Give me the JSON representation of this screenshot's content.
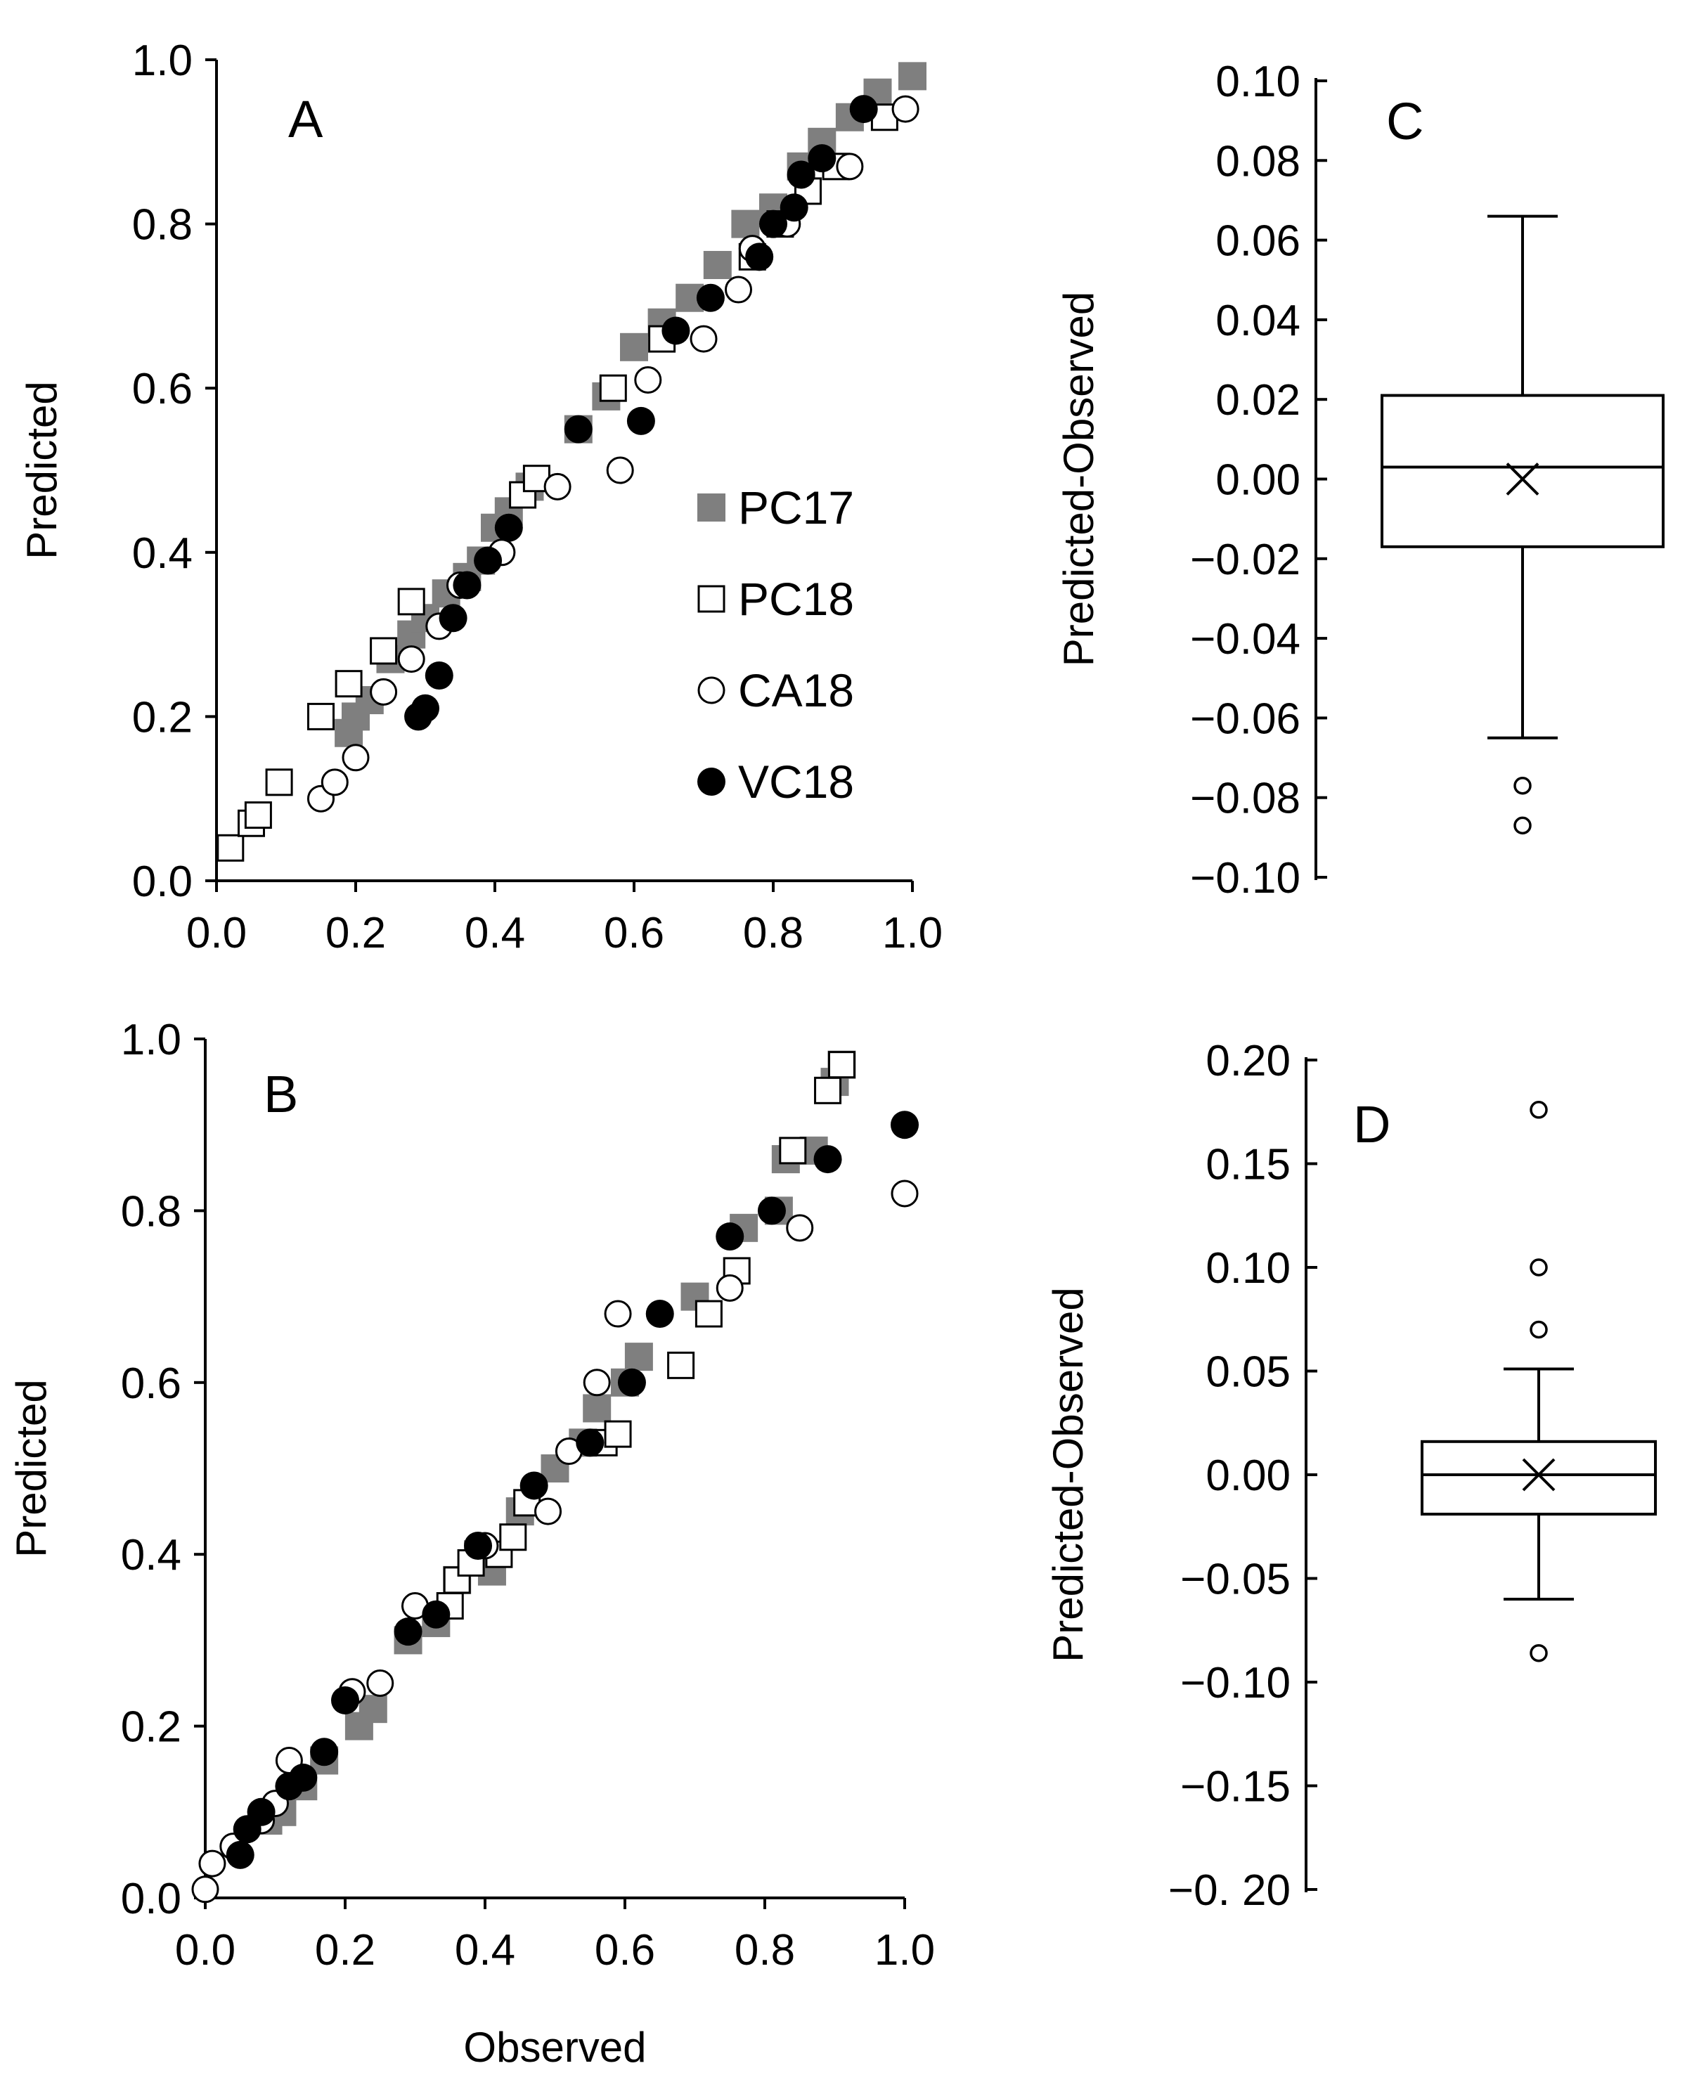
{
  "chart_data": [
    {
      "id": "A",
      "type": "scatter",
      "panel_label": "A",
      "xlabel": "",
      "ylabel": "Predicted",
      "xlim": [
        0,
        1
      ],
      "ylim": [
        0,
        1
      ],
      "x_ticks": [
        "0.0",
        "0.2",
        "0.4",
        "0.6",
        "0.8",
        "1.0"
      ],
      "y_ticks": [
        "0.0",
        "0.2",
        "0.4",
        "0.6",
        "0.8",
        "1.0"
      ],
      "legend": {
        "position": "center-right",
        "entries": [
          "PC17",
          "PC18",
          "CA18",
          "VC18"
        ]
      },
      "series": [
        {
          "name": "PC17",
          "marker": "gray-square",
          "points": [
            [
              0.19,
              0.18
            ],
            [
              0.2,
              0.2
            ],
            [
              0.22,
              0.22
            ],
            [
              0.25,
              0.27
            ],
            [
              0.28,
              0.3
            ],
            [
              0.3,
              0.32
            ],
            [
              0.33,
              0.35
            ],
            [
              0.36,
              0.37
            ],
            [
              0.38,
              0.39
            ],
            [
              0.4,
              0.43
            ],
            [
              0.42,
              0.45
            ],
            [
              0.45,
              0.48
            ],
            [
              0.52,
              0.55
            ],
            [
              0.56,
              0.59
            ],
            [
              0.6,
              0.65
            ],
            [
              0.64,
              0.68
            ],
            [
              0.68,
              0.71
            ],
            [
              0.72,
              0.75
            ],
            [
              0.76,
              0.8
            ],
            [
              0.8,
              0.82
            ],
            [
              0.84,
              0.87
            ],
            [
              0.87,
              0.9
            ],
            [
              0.91,
              0.93
            ],
            [
              0.95,
              0.96
            ],
            [
              1.0,
              0.98
            ]
          ]
        },
        {
          "name": "PC18",
          "marker": "open-square",
          "points": [
            [
              0.02,
              0.04
            ],
            [
              0.05,
              0.07
            ],
            [
              0.06,
              0.08
            ],
            [
              0.09,
              0.12
            ],
            [
              0.15,
              0.2
            ],
            [
              0.19,
              0.24
            ],
            [
              0.24,
              0.28
            ],
            [
              0.28,
              0.34
            ],
            [
              0.44,
              0.47
            ],
            [
              0.46,
              0.49
            ],
            [
              0.57,
              0.6
            ],
            [
              0.64,
              0.66
            ],
            [
              0.77,
              0.76
            ],
            [
              0.81,
              0.8
            ],
            [
              0.85,
              0.84
            ],
            [
              0.89,
              0.87
            ],
            [
              0.96,
              0.93
            ]
          ]
        },
        {
          "name": "CA18",
          "marker": "open-circle",
          "points": [
            [
              0.15,
              0.1
            ],
            [
              0.17,
              0.12
            ],
            [
              0.2,
              0.15
            ],
            [
              0.24,
              0.23
            ],
            [
              0.28,
              0.27
            ],
            [
              0.32,
              0.31
            ],
            [
              0.35,
              0.36
            ],
            [
              0.41,
              0.4
            ],
            [
              0.49,
              0.48
            ],
            [
              0.58,
              0.5
            ],
            [
              0.62,
              0.61
            ],
            [
              0.7,
              0.66
            ],
            [
              0.75,
              0.72
            ],
            [
              0.77,
              0.77
            ],
            [
              0.82,
              0.8
            ],
            [
              0.91,
              0.87
            ],
            [
              0.99,
              0.94
            ]
          ]
        },
        {
          "name": "VC18",
          "marker": "filled-circle",
          "points": [
            [
              0.29,
              0.2
            ],
            [
              0.3,
              0.21
            ],
            [
              0.32,
              0.25
            ],
            [
              0.34,
              0.32
            ],
            [
              0.36,
              0.36
            ],
            [
              0.39,
              0.39
            ],
            [
              0.42,
              0.43
            ],
            [
              0.52,
              0.55
            ],
            [
              0.61,
              0.56
            ],
            [
              0.66,
              0.67
            ],
            [
              0.71,
              0.71
            ],
            [
              0.78,
              0.76
            ],
            [
              0.8,
              0.8
            ],
            [
              0.83,
              0.82
            ],
            [
              0.84,
              0.86
            ],
            [
              0.87,
              0.88
            ],
            [
              0.93,
              0.94
            ]
          ]
        }
      ]
    },
    {
      "id": "B",
      "type": "scatter",
      "panel_label": "B",
      "xlabel": "Observed",
      "ylabel": "Predicted",
      "xlim": [
        0,
        1
      ],
      "ylim": [
        0,
        1
      ],
      "x_ticks": [
        "0.0",
        "0.2",
        "0.4",
        "0.6",
        "0.8",
        "1.0"
      ],
      "y_ticks": [
        "0.0",
        "0.2",
        "0.4",
        "0.6",
        "0.8",
        "1.0"
      ],
      "series": [
        {
          "name": "PC17",
          "marker": "gray-square",
          "points": [
            [
              0.09,
              0.09
            ],
            [
              0.11,
              0.1
            ],
            [
              0.14,
              0.13
            ],
            [
              0.17,
              0.16
            ],
            [
              0.22,
              0.2
            ],
            [
              0.24,
              0.22
            ],
            [
              0.29,
              0.3
            ],
            [
              0.33,
              0.32
            ],
            [
              0.36,
              0.37
            ],
            [
              0.39,
              0.4
            ],
            [
              0.41,
              0.38
            ],
            [
              0.45,
              0.45
            ],
            [
              0.5,
              0.5
            ],
            [
              0.54,
              0.53
            ],
            [
              0.56,
              0.57
            ],
            [
              0.6,
              0.6
            ],
            [
              0.62,
              0.63
            ],
            [
              0.7,
              0.7
            ],
            [
              0.77,
              0.78
            ],
            [
              0.82,
              0.8
            ],
            [
              0.83,
              0.86
            ],
            [
              0.87,
              0.87
            ],
            [
              0.9,
              0.95
            ],
            [
              0.91,
              0.97
            ]
          ]
        },
        {
          "name": "PC18",
          "marker": "open-square",
          "points": [
            [
              0.35,
              0.34
            ],
            [
              0.36,
              0.37
            ],
            [
              0.38,
              0.39
            ],
            [
              0.42,
              0.4
            ],
            [
              0.44,
              0.42
            ],
            [
              0.46,
              0.46
            ],
            [
              0.57,
              0.53
            ],
            [
              0.59,
              0.54
            ],
            [
              0.68,
              0.62
            ],
            [
              0.72,
              0.68
            ],
            [
              0.76,
              0.73
            ],
            [
              0.84,
              0.87
            ],
            [
              0.89,
              0.94
            ],
            [
              0.91,
              0.97
            ]
          ]
        },
        {
          "name": "CA18",
          "marker": "open-circle",
          "points": [
            [
              0.0,
              0.01
            ],
            [
              0.01,
              0.04
            ],
            [
              0.04,
              0.06
            ],
            [
              0.08,
              0.09
            ],
            [
              0.1,
              0.11
            ],
            [
              0.12,
              0.16
            ],
            [
              0.21,
              0.24
            ],
            [
              0.25,
              0.25
            ],
            [
              0.3,
              0.34
            ],
            [
              0.4,
              0.41
            ],
            [
              0.49,
              0.45
            ],
            [
              0.52,
              0.52
            ],
            [
              0.56,
              0.6
            ],
            [
              0.59,
              0.68
            ],
            [
              0.75,
              0.71
            ],
            [
              0.85,
              0.78
            ],
            [
              1.0,
              0.82
            ]
          ]
        },
        {
          "name": "VC18",
          "marker": "filled-circle",
          "points": [
            [
              0.05,
              0.05
            ],
            [
              0.06,
              0.08
            ],
            [
              0.08,
              0.1
            ],
            [
              0.12,
              0.13
            ],
            [
              0.14,
              0.14
            ],
            [
              0.17,
              0.17
            ],
            [
              0.2,
              0.23
            ],
            [
              0.29,
              0.31
            ],
            [
              0.33,
              0.33
            ],
            [
              0.39,
              0.41
            ],
            [
              0.47,
              0.48
            ],
            [
              0.55,
              0.53
            ],
            [
              0.61,
              0.6
            ],
            [
              0.65,
              0.68
            ],
            [
              0.75,
              0.77
            ],
            [
              0.81,
              0.8
            ],
            [
              0.89,
              0.86
            ],
            [
              1.0,
              0.9
            ]
          ]
        }
      ]
    },
    {
      "id": "C",
      "type": "box",
      "panel_label": "C",
      "ylabel": "Predicted-Observed",
      "ylim": [
        -0.1,
        0.1
      ],
      "y_tick_values": [
        0.1,
        0.08,
        0.06,
        0.04,
        0.02,
        0.0,
        -0.02,
        -0.04,
        -0.06,
        -0.08,
        -0.1
      ],
      "y_ticks": [
        "0.10",
        "0.08",
        "0.06",
        "0.04",
        "0.02",
        "0.00",
        "−0.02",
        "−0.04",
        "−0.06",
        "−0.08",
        "−0.10"
      ],
      "whisker_high": 0.066,
      "q3": 0.021,
      "median": 0.003,
      "mean": 0.0,
      "q1": -0.017,
      "whisker_low": -0.065,
      "outliers": [
        -0.077,
        -0.087
      ]
    },
    {
      "id": "D",
      "type": "box",
      "panel_label": "D",
      "ylabel": "Predicted-Observed",
      "ylim": [
        -0.2,
        0.2
      ],
      "y_tick_values": [
        0.2,
        0.15,
        0.1,
        0.05,
        0.0,
        -0.05,
        -0.1,
        -0.15,
        -0.2
      ],
      "y_ticks": [
        "0.20",
        "0.15",
        "0.10",
        "0.05",
        "0.00",
        "−0.05",
        "−0.10",
        "−0.15",
        "−0. 20"
      ],
      "whisker_high": 0.051,
      "q3": 0.016,
      "median": 0.0,
      "mean": 0.0,
      "q1": -0.019,
      "whisker_low": -0.06,
      "outliers": [
        0.176,
        0.1,
        0.07,
        -0.086
      ]
    }
  ]
}
